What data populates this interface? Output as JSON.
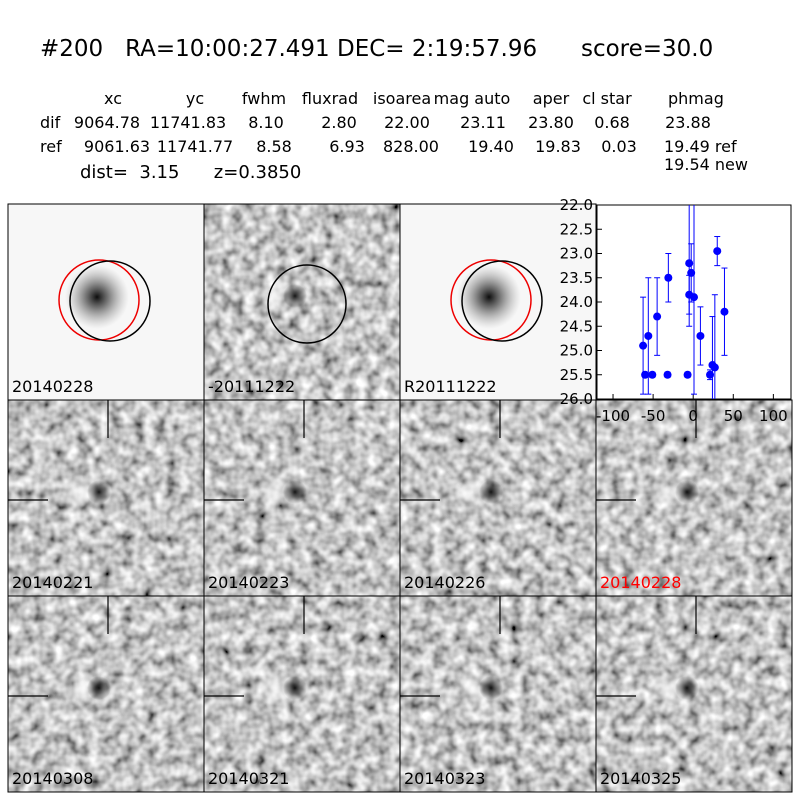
{
  "header": {
    "title": "#200   RA=10:00:27.491 DEC= 2:19:57.96      score=30.0",
    "columns": [
      "xc",
      "yc",
      "fwhm",
      "fluxrad",
      "isoarea",
      "mag auto",
      "aper",
      "cl star",
      "phmag"
    ],
    "rows": [
      {
        "label": "dif",
        "cells": [
          "9064.78",
          "11741.83",
          "8.10",
          "2.80",
          "22.00",
          "23.11",
          "23.80",
          "0.68",
          "23.88"
        ]
      },
      {
        "label": "ref",
        "cells": [
          "9061.63",
          "11741.77",
          "8.58",
          "6.93",
          "828.00",
          "19.40",
          "19.83",
          "0.03",
          "19.49 ref"
        ]
      }
    ],
    "new_mag": "19.54 new",
    "dist": "dist=  3.15      z=0.3850"
  },
  "stamps": [
    {
      "label": "20140228",
      "color": "#000000"
    },
    {
      "label": "-20111222",
      "color": "#000000"
    },
    {
      "label": "R20111222",
      "color": "#000000"
    },
    {
      "label": "20140221",
      "color": "#000000"
    },
    {
      "label": "20140223",
      "color": "#000000"
    },
    {
      "label": "20140226",
      "color": "#000000"
    },
    {
      "label": "20140228",
      "color": "#ff0000"
    },
    {
      "label": "20140308",
      "color": "#000000"
    },
    {
      "label": "20140321",
      "color": "#000000"
    },
    {
      "label": "20140323",
      "color": "#000000"
    },
    {
      "label": "20140325",
      "color": "#000000"
    }
  ],
  "chart_data": {
    "type": "scatter",
    "x": [
      -62.5,
      -60,
      -56,
      -51,
      -45,
      -31,
      -32,
      -7,
      -5,
      -2.5,
      -5,
      1,
      9,
      21,
      24,
      27,
      30,
      39
    ],
    "series": [
      {
        "color": "#0000ff",
        "values": [
          24.9,
          25.5,
          24.7,
          25.5,
          24.3,
          23.5,
          25.5,
          25.5,
          23.2,
          23.4,
          23.85,
          23.9,
          24.7,
          25.5,
          25.3,
          25.35,
          22.95,
          24.2
        ],
        "errors": [
          1.0,
          0.05,
          1.2,
          0.05,
          0.8,
          0.5,
          0.05,
          0.05,
          1.3,
          0.6,
          0.4,
          2.0,
          0.6,
          0.1,
          1.0,
          1.5,
          0.3,
          0.9
        ]
      }
    ],
    "xlim": [
      -120,
      122
    ],
    "ylim": [
      26,
      22
    ],
    "xticks": [
      -100,
      -50,
      0,
      50,
      100
    ],
    "yticks": [
      {
        "value": 22,
        "label": "22.0"
      },
      {
        "value": 22.5,
        "label": "22.5"
      },
      {
        "value": 23,
        "label": "23.0"
      },
      {
        "value": 23.5,
        "label": "23.5"
      },
      {
        "value": 24,
        "label": "24.0"
      },
      {
        "value": 24.5,
        "label": "24.5"
      },
      {
        "value": 25,
        "label": "25.0"
      },
      {
        "value": 25.5,
        "label": "25.5"
      },
      {
        "value": 26,
        "label": "26.0"
      }
    ]
  }
}
